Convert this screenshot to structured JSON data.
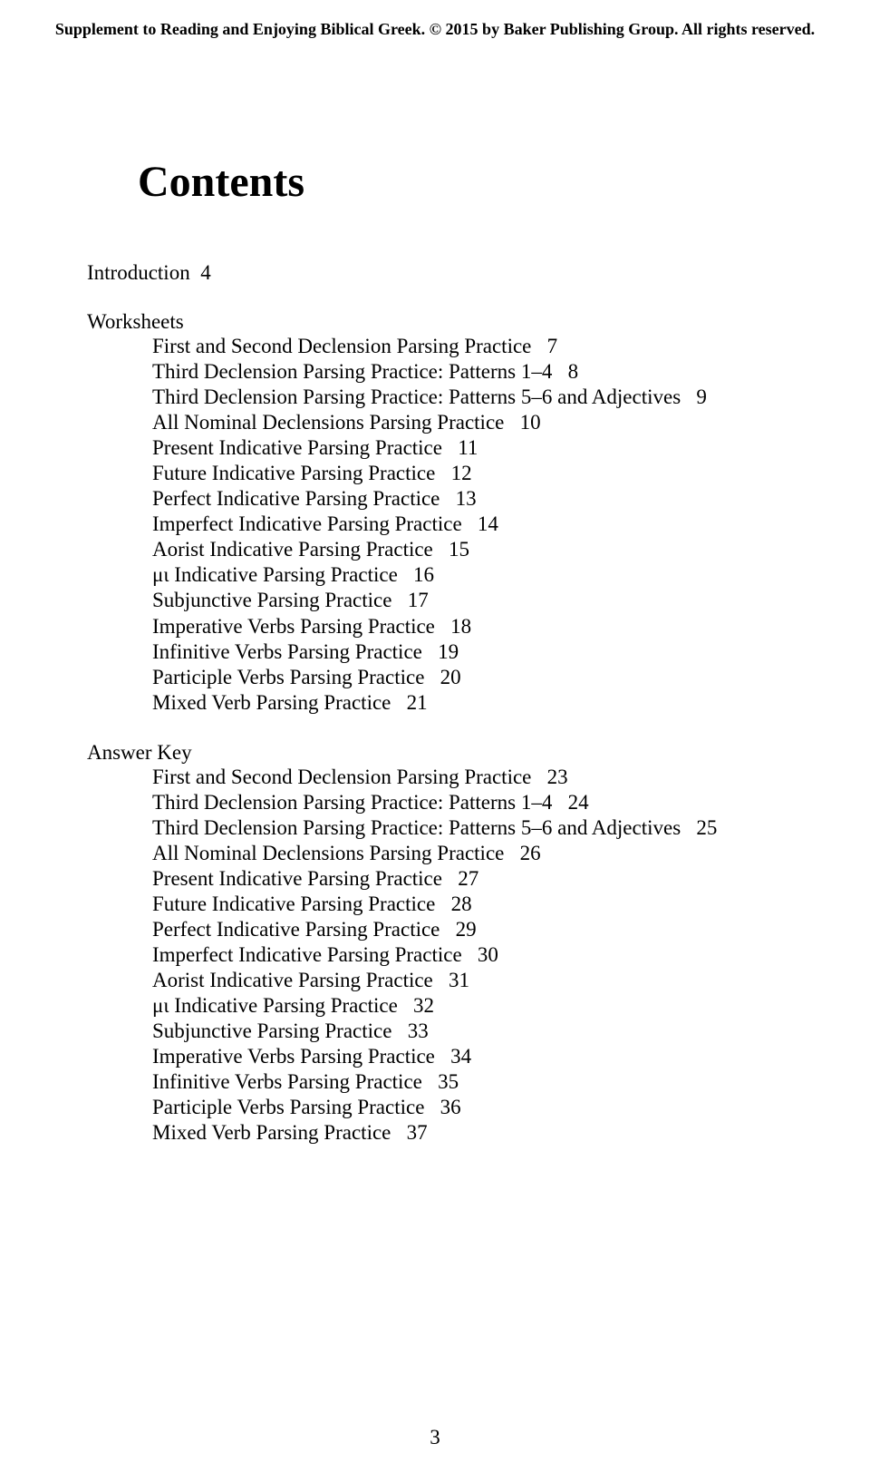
{
  "header": "Supplement to Reading and Enjoying Biblical Greek. © 2015 by Baker Publishing Group. All rights reserved.",
  "title": "Contents",
  "intro": {
    "label": "Introduction",
    "page": "4"
  },
  "worksheets": {
    "label": "Worksheets",
    "items": [
      {
        "label": "First and Second Declension Parsing Practice",
        "page": "7"
      },
      {
        "label": "Third Declension Parsing Practice: Patterns 1–4",
        "page": "8"
      },
      {
        "label": "Third Declension Parsing Practice: Patterns 5–6 and Adjectives",
        "page": "9"
      },
      {
        "label": "All Nominal Declensions Parsing Practice",
        "page": "10"
      },
      {
        "label": "Present Indicative Parsing Practice",
        "page": "11"
      },
      {
        "label": "Future Indicative Parsing Practice",
        "page": "12"
      },
      {
        "label": "Perfect Indicative Parsing Practice",
        "page": "13"
      },
      {
        "label": "Imperfect Indicative Parsing Practice",
        "page": "14"
      },
      {
        "label": "Aorist Indicative Parsing Practice",
        "page": "15"
      },
      {
        "label": "μι Indicative Parsing Practice",
        "page": "16"
      },
      {
        "label": "Subjunctive Parsing Practice",
        "page": "17"
      },
      {
        "label": "Imperative Verbs Parsing Practice",
        "page": "18"
      },
      {
        "label": "Infinitive Verbs Parsing Practice",
        "page": "19"
      },
      {
        "label": "Participle Verbs Parsing Practice",
        "page": "20"
      },
      {
        "label": "Mixed Verb Parsing Practice",
        "page": "21"
      }
    ]
  },
  "answerkey": {
    "label": "Answer Key",
    "items": [
      {
        "label": "First and Second Declension Parsing Practice",
        "page": "23"
      },
      {
        "label": "Third Declension Parsing Practice: Patterns 1–4",
        "page": "24"
      },
      {
        "label": "Third Declension Parsing Practice: Patterns 5–6 and Adjectives",
        "page": "25"
      },
      {
        "label": "All Nominal Declensions Parsing Practice",
        "page": "26"
      },
      {
        "label": "Present Indicative Parsing Practice",
        "page": "27"
      },
      {
        "label": "Future Indicative Parsing Practice",
        "page": "28"
      },
      {
        "label": "Perfect Indicative Parsing Practice",
        "page": "29"
      },
      {
        "label": "Imperfect Indicative Parsing Practice",
        "page": "30"
      },
      {
        "label": "Aorist Indicative Parsing Practice",
        "page": "31"
      },
      {
        "label": "μι Indicative Parsing Practice",
        "page": "32"
      },
      {
        "label": "Subjunctive Parsing Practice",
        "page": "33"
      },
      {
        "label": "Imperative Verbs Parsing Practice",
        "page": "34"
      },
      {
        "label": "Infinitive Verbs Parsing Practice",
        "page": "35"
      },
      {
        "label": "Participle Verbs Parsing Practice",
        "page": "36"
      },
      {
        "label": "Mixed Verb Parsing Practice",
        "page": "37"
      }
    ]
  },
  "pageNumber": "3"
}
